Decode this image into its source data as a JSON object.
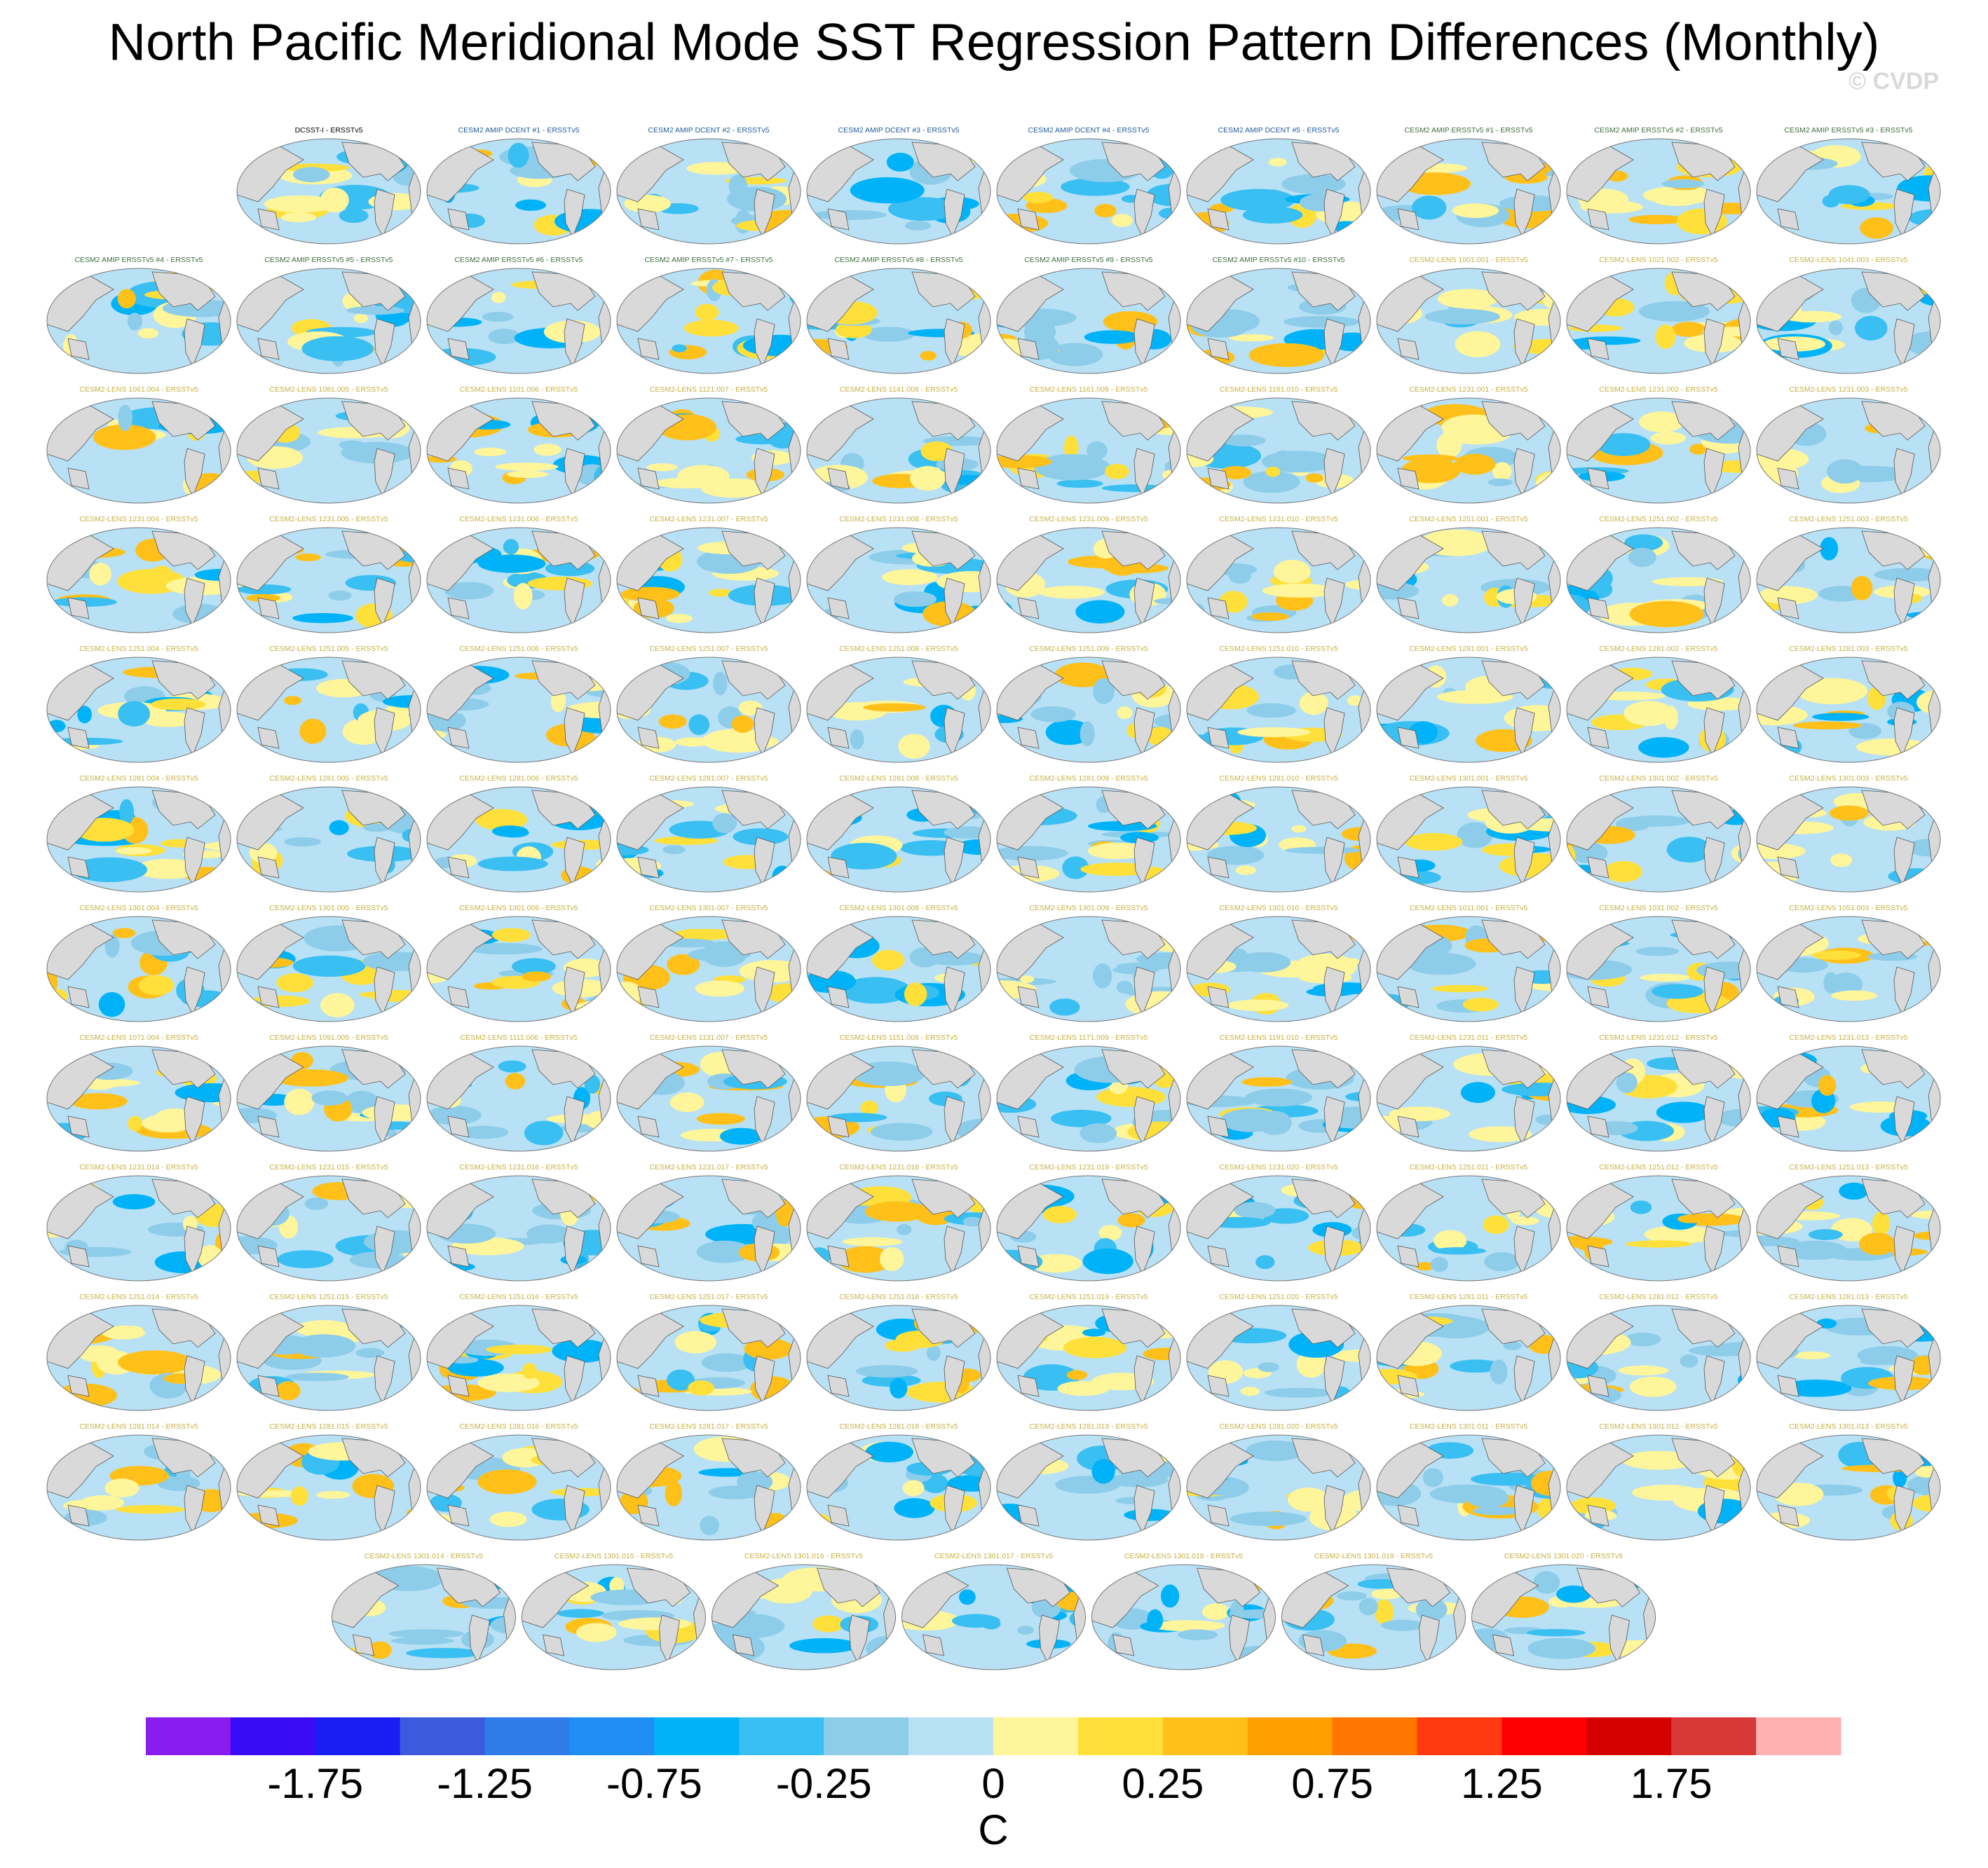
{
  "chart_data": {
    "type": "map_panels",
    "title": "North Pacific Meridional Mode SST Regression Pattern Differences (Monthly)",
    "watermark": "© CVDP",
    "panels": [
      {
        "title": "DCSST-I - ERSSTv5",
        "color": "#000000"
      },
      {
        "title": "CESM2 AMIP DCENT #1 - ERSSTv5",
        "color": "#1f5a9a"
      },
      {
        "title": "CESM2 AMIP DCENT #2 - ERSSTv5",
        "color": "#1f5a9a"
      },
      {
        "title": "CESM2 AMIP DCENT #3 - ERSSTv5",
        "color": "#1f5a9a"
      },
      {
        "title": "CESM2 AMIP DCENT #4 - ERSSTv5",
        "color": "#1f5a9a"
      },
      {
        "title": "CESM2 AMIP DCENT #5 - ERSSTv5",
        "color": "#1f5a9a"
      },
      {
        "title": "CESM2 AMIP ERSSTv5 #1 - ERSSTv5",
        "color": "#3e6e3e"
      },
      {
        "title": "CESM2 AMIP ERSSTv5 #2 - ERSSTv5",
        "color": "#3e6e3e"
      },
      {
        "title": "CESM2 AMIP ERSSTv5 #3 - ERSSTv5",
        "color": "#3e6e3e"
      },
      {
        "title": "CESM2 AMIP ERSSTv5 #4 - ERSSTv5",
        "color": "#3e6e3e"
      },
      {
        "title": "CESM2 AMIP ERSSTv5 #5 - ERSSTv5",
        "color": "#3e6e3e"
      },
      {
        "title": "CESM2 AMIP ERSSTv5 #6 - ERSSTv5",
        "color": "#3e6e3e"
      },
      {
        "title": "CESM2 AMIP ERSSTv5 #7 - ERSSTv5",
        "color": "#3e6e3e"
      },
      {
        "title": "CESM2 AMIP ERSSTv5 #8 - ERSSTv5",
        "color": "#3e6e3e"
      },
      {
        "title": "CESM2 AMIP ERSSTv5 #9 - ERSSTv5",
        "color": "#3e6e3e"
      },
      {
        "title": "CESM2 AMIP ERSSTv5 #10 - ERSSTv5",
        "color": "#3e6e3e"
      },
      {
        "title": "CESM2-LENS 1001.001 - ERSSTv5",
        "color": "#c8b040"
      },
      {
        "title": "CESM2-LENS 1021.002 - ERSSTv5",
        "color": "#c8b040"
      },
      {
        "title": "CESM2-LENS 1041.003 - ERSSTv5",
        "color": "#c8b040"
      },
      {
        "title": "CESM2-LENS 1061.004 - ERSSTv5",
        "color": "#c8b040"
      },
      {
        "title": "CESM2-LENS 1081.005 - ERSSTv5",
        "color": "#c8b040"
      },
      {
        "title": "CESM2-LENS 1101.006 - ERSSTv5",
        "color": "#c8b040"
      },
      {
        "title": "CESM2-LENS 1121.007 - ERSSTv5",
        "color": "#c8b040"
      },
      {
        "title": "CESM2-LENS 1141.008 - ERSSTv5",
        "color": "#c8b040"
      },
      {
        "title": "CESM2-LENS 1161.009 - ERSSTv5",
        "color": "#c8b040"
      },
      {
        "title": "CESM2-LENS 1181.010 - ERSSTv5",
        "color": "#c8b040"
      },
      {
        "title": "CESM2-LENS 1231.001 - ERSSTv5",
        "color": "#c8b040"
      },
      {
        "title": "CESM2-LENS 1231.002 - ERSSTv5",
        "color": "#c8b040"
      },
      {
        "title": "CESM2-LENS 1231.003 - ERSSTv5",
        "color": "#c8b040"
      },
      {
        "title": "CESM2-LENS 1231.004 - ERSSTv5",
        "color": "#c8b040"
      },
      {
        "title": "CESM2-LENS 1231.005 - ERSSTv5",
        "color": "#c8b040"
      },
      {
        "title": "CESM2-LENS 1231.006 - ERSSTv5",
        "color": "#c8b040"
      },
      {
        "title": "CESM2-LENS 1231.007 - ERSSTv5",
        "color": "#c8b040"
      },
      {
        "title": "CESM2-LENS 1231.008 - ERSSTv5",
        "color": "#c8b040"
      },
      {
        "title": "CESM2-LENS 1231.009 - ERSSTv5",
        "color": "#c8b040"
      },
      {
        "title": "CESM2-LENS 1231.010 - ERSSTv5",
        "color": "#c8b040"
      },
      {
        "title": "CESM2-LENS 1251.001 - ERSSTv5",
        "color": "#c8b040"
      },
      {
        "title": "CESM2-LENS 1251.002 - ERSSTv5",
        "color": "#c8b040"
      },
      {
        "title": "CESM2-LENS 1251.003 - ERSSTv5",
        "color": "#c8b040"
      },
      {
        "title": "CESM2-LENS 1251.004 - ERSSTv5",
        "color": "#c8b040"
      },
      {
        "title": "CESM2-LENS 1251.005 - ERSSTv5",
        "color": "#c8b040"
      },
      {
        "title": "CESM2-LENS 1251.006 - ERSSTv5",
        "color": "#c8b040"
      },
      {
        "title": "CESM2-LENS 1251.007 - ERSSTv5",
        "color": "#c8b040"
      },
      {
        "title": "CESM2-LENS 1251.008 - ERSSTv5",
        "color": "#c8b040"
      },
      {
        "title": "CESM2-LENS 1251.009 - ERSSTv5",
        "color": "#c8b040"
      },
      {
        "title": "CESM2-LENS 1251.010 - ERSSTv5",
        "color": "#c8b040"
      },
      {
        "title": "CESM2-LENS 1281.001 - ERSSTv5",
        "color": "#c8b040"
      },
      {
        "title": "CESM2-LENS 1281.002 - ERSSTv5",
        "color": "#c8b040"
      },
      {
        "title": "CESM2-LENS 1281.003 - ERSSTv5",
        "color": "#c8b040"
      },
      {
        "title": "CESM2-LENS 1281.004 - ERSSTv5",
        "color": "#c8b040"
      },
      {
        "title": "CESM2-LENS 1281.005 - ERSSTv5",
        "color": "#c8b040"
      },
      {
        "title": "CESM2-LENS 1281.006 - ERSSTv5",
        "color": "#c8b040"
      },
      {
        "title": "CESM2-LENS 1281.007 - ERSSTv5",
        "color": "#c8b040"
      },
      {
        "title": "CESM2-LENS 1281.008 - ERSSTv5",
        "color": "#c8b040"
      },
      {
        "title": "CESM2-LENS 1281.009 - ERSSTv5",
        "color": "#c8b040"
      },
      {
        "title": "CESM2-LENS 1281.010 - ERSSTv5",
        "color": "#c8b040"
      },
      {
        "title": "CESM2-LENS 1301.001 - ERSSTv5",
        "color": "#c8b040"
      },
      {
        "title": "CESM2-LENS 1301.002 - ERSSTv5",
        "color": "#c8b040"
      },
      {
        "title": "CESM2-LENS 1301.003 - ERSSTv5",
        "color": "#c8b040"
      },
      {
        "title": "CESM2-LENS 1301.004 - ERSSTv5",
        "color": "#c8b040"
      },
      {
        "title": "CESM2-LENS 1301.005 - ERSSTv5",
        "color": "#c8b040"
      },
      {
        "title": "CESM2-LENS 1301.006 - ERSSTv5",
        "color": "#c8b040"
      },
      {
        "title": "CESM2-LENS 1301.007 - ERSSTv5",
        "color": "#c8b040"
      },
      {
        "title": "CESM2-LENS 1301.008 - ERSSTv5",
        "color": "#c8b040"
      },
      {
        "title": "CESM2-LENS 1301.009 - ERSSTv5",
        "color": "#c8b040"
      },
      {
        "title": "CESM2-LENS 1301.010 - ERSSTv5",
        "color": "#c8b040"
      },
      {
        "title": "CESM2-LENS 1011.001 - ERSSTv5",
        "color": "#c8b040"
      },
      {
        "title": "CESM2-LENS 1031.002 - ERSSTv5",
        "color": "#c8b040"
      },
      {
        "title": "CESM2-LENS 1051.003 - ERSSTv5",
        "color": "#c8b040"
      },
      {
        "title": "CESM2-LENS 1071.004 - ERSSTv5",
        "color": "#c8b040"
      },
      {
        "title": "CESM2-LENS 1091.005 - ERSSTv5",
        "color": "#c8b040"
      },
      {
        "title": "CESM2-LENS 1111.006 - ERSSTv5",
        "color": "#c8b040"
      },
      {
        "title": "CESM2-LENS 1131.007 - ERSSTv5",
        "color": "#c8b040"
      },
      {
        "title": "CESM2-LENS 1151.008 - ERSSTv5",
        "color": "#c8b040"
      },
      {
        "title": "CESM2-LENS 1171.009 - ERSSTv5",
        "color": "#c8b040"
      },
      {
        "title": "CESM2-LENS 1191.010 - ERSSTv5",
        "color": "#c8b040"
      },
      {
        "title": "CESM2-LENS 1231.011 - ERSSTv5",
        "color": "#c8b040"
      },
      {
        "title": "CESM2-LENS 1231.012 - ERSSTv5",
        "color": "#c8b040"
      },
      {
        "title": "CESM2-LENS 1231.013 - ERSSTv5",
        "color": "#c8b040"
      },
      {
        "title": "CESM2-LENS 1231.014 - ERSSTv5",
        "color": "#c8b040"
      },
      {
        "title": "CESM2-LENS 1231.015 - ERSSTv5",
        "color": "#c8b040"
      },
      {
        "title": "CESM2-LENS 1231.016 - ERSSTv5",
        "color": "#c8b040"
      },
      {
        "title": "CESM2-LENS 1231.017 - ERSSTv5",
        "color": "#c8b040"
      },
      {
        "title": "CESM2-LENS 1231.018 - ERSSTv5",
        "color": "#c8b040"
      },
      {
        "title": "CESM2-LENS 1231.019 - ERSSTv5",
        "color": "#c8b040"
      },
      {
        "title": "CESM2-LENS 1231.020 - ERSSTv5",
        "color": "#c8b040"
      },
      {
        "title": "CESM2-LENS 1251.011 - ERSSTv5",
        "color": "#c8b040"
      },
      {
        "title": "CESM2-LENS 1251.012 - ERSSTv5",
        "color": "#c8b040"
      },
      {
        "title": "CESM2-LENS 1251.013 - ERSSTv5",
        "color": "#c8b040"
      },
      {
        "title": "CESM2-LENS 1251.014 - ERSSTv5",
        "color": "#c8b040"
      },
      {
        "title": "CESM2-LENS 1251.015 - ERSSTv5",
        "color": "#c8b040"
      },
      {
        "title": "CESM2-LENS 1251.016 - ERSSTv5",
        "color": "#c8b040"
      },
      {
        "title": "CESM2-LENS 1251.017 - ERSSTv5",
        "color": "#c8b040"
      },
      {
        "title": "CESM2-LENS 1251.018 - ERSSTv5",
        "color": "#c8b040"
      },
      {
        "title": "CESM2-LENS 1251.019 - ERSSTv5",
        "color": "#c8b040"
      },
      {
        "title": "CESM2-LENS 1251.020 - ERSSTv5",
        "color": "#c8b040"
      },
      {
        "title": "CESM2-LENS 1281.011 - ERSSTv5",
        "color": "#c8b040"
      },
      {
        "title": "CESM2-LENS 1281.012 - ERSSTv5",
        "color": "#c8b040"
      },
      {
        "title": "CESM2-LENS 1281.013 - ERSSTv5",
        "color": "#c8b040"
      },
      {
        "title": "CESM2-LENS 1281.014 - ERSSTv5",
        "color": "#c8b040"
      },
      {
        "title": "CESM2-LENS 1281.015 - ERSSTv5",
        "color": "#c8b040"
      },
      {
        "title": "CESM2-LENS 1281.016 - ERSSTv5",
        "color": "#c8b040"
      },
      {
        "title": "CESM2-LENS 1281.017 - ERSSTv5",
        "color": "#c8b040"
      },
      {
        "title": "CESM2-LENS 1281.018 - ERSSTv5",
        "color": "#c8b040"
      },
      {
        "title": "CESM2-LENS 1281.019 - ERSSTv5",
        "color": "#c8b040"
      },
      {
        "title": "CESM2-LENS 1281.020 - ERSSTv5",
        "color": "#c8b040"
      },
      {
        "title": "CESM2-LENS 1301.011 - ERSSTv5",
        "color": "#c8b040"
      },
      {
        "title": "CESM2-LENS 1301.012 - ERSSTv5",
        "color": "#c8b040"
      },
      {
        "title": "CESM2-LENS 1301.013 - ERSSTv5",
        "color": "#c8b040"
      },
      {
        "title": "CESM2-LENS 1301.014 - ERSSTv5",
        "color": "#c8b040"
      },
      {
        "title": "CESM2-LENS 1301.015 - ERSSTv5",
        "color": "#c8b040"
      },
      {
        "title": "CESM2-LENS 1301.016 - ERSSTv5",
        "color": "#c8b040"
      },
      {
        "title": "CESM2-LENS 1301.017 - ERSSTv5",
        "color": "#c8b040"
      },
      {
        "title": "CESM2-LENS 1301.018 - ERSSTv5",
        "color": "#c8b040"
      },
      {
        "title": "CESM2-LENS 1301.019 - ERSSTv5",
        "color": "#c8b040"
      },
      {
        "title": "CESM2-LENS 1301.020 - ERSSTv5",
        "color": "#c8b040"
      }
    ],
    "colorbar": {
      "colors": [
        "#8b1cf0",
        "#3a0cf5",
        "#1a1ef5",
        "#3b5bdc",
        "#2f7be8",
        "#1e8ef5",
        "#00b3f8",
        "#39bff2",
        "#8ecdea",
        "#b8e1f5",
        "#fff59a",
        "#ffe03a",
        "#ffc01a",
        "#ff9f00",
        "#ff7700",
        "#ff3a10",
        "#ff0000",
        "#d40000",
        "#d83838",
        "#ffb0b0"
      ],
      "levels": [
        -2,
        -1.75,
        -1.5,
        -1.25,
        -1,
        -0.75,
        -0.5,
        -0.25,
        -0.1,
        0,
        0.1,
        0.25,
        0.5,
        0.75,
        1,
        1.25,
        1.5,
        1.75,
        2
      ],
      "ticks": [
        -1.75,
        -1.25,
        -0.75,
        -0.25,
        0,
        0.25,
        0.75,
        1.25,
        1.75
      ],
      "label": "C"
    }
  }
}
